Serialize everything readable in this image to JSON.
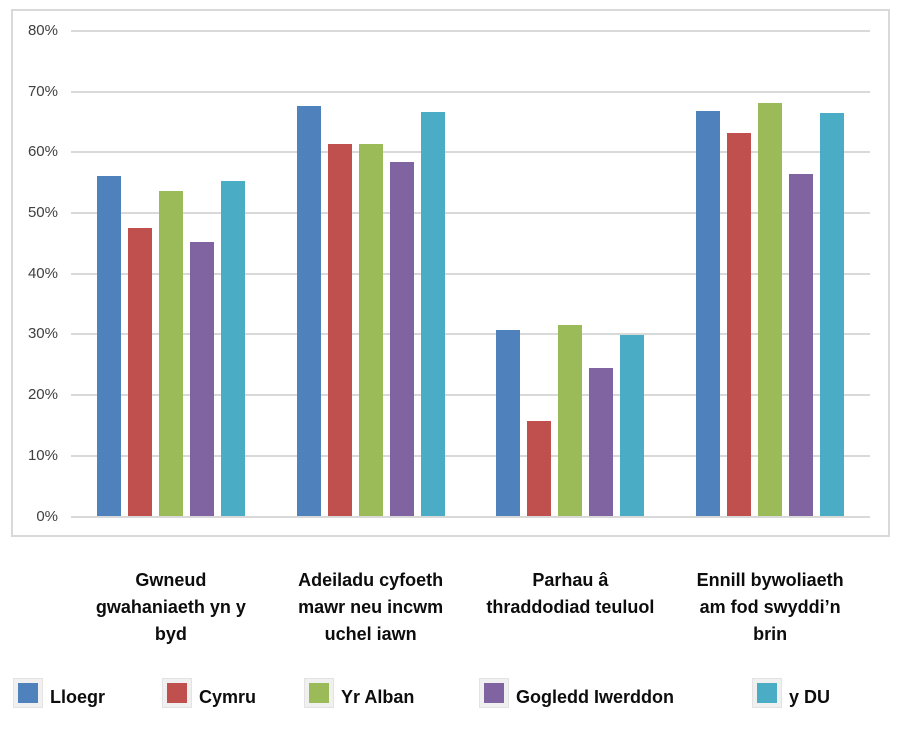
{
  "chart_data": {
    "type": "bar",
    "title": "",
    "xlabel": "",
    "ylabel": "",
    "categories": [
      "Gwneud gwahaniaeth yn y byd",
      "Adeiladu cyfoeth mawr neu incwm uchel iawn",
      "Parhau â thraddodiad teuluol",
      "Ennill bywoliaeth am fod swyddi’n brin"
    ],
    "categories_display": [
      "Gwneud\ngwahaniaeth yn y\nbyd",
      "Adeiladu cyfoeth\nmawr neu incwm\nuchel iawn",
      "Parhau â\nthraddodiad teuluol",
      "Ennill bywoliaeth\nam fod swyddi’n\nbrin"
    ],
    "series": [
      {
        "name": "Lloegr",
        "color": "#4F81BD",
        "values": [
          56.1,
          67.7,
          30.7,
          66.8
        ]
      },
      {
        "name": "Cymru",
        "color": "#C0504D",
        "values": [
          47.6,
          61.3,
          15.7,
          63.2
        ]
      },
      {
        "name": "Yr Alban",
        "color": "#9BBB59",
        "values": [
          53.7,
          61.3,
          31.5,
          68.1
        ]
      },
      {
        "name": "Gogledd Iwerddon",
        "color": "#8064A2",
        "values": [
          45.2,
          58.4,
          24.5,
          56.4
        ]
      },
      {
        "name": "y DU",
        "color": "#4BACC6",
        "values": [
          55.3,
          66.7,
          29.9,
          66.5
        ]
      }
    ],
    "y_axis": {
      "min": 0,
      "max": 80,
      "step": 10,
      "tick_labels": [
        "0%",
        "10%",
        "20%",
        "30%",
        "40%",
        "50%",
        "60%",
        "70%",
        "80%"
      ]
    },
    "grid": "horizontal",
    "legend_position": "bottom",
    "colors": {
      "gridline": "#d9d9d9",
      "plot_border": "#d9d9d9",
      "tick_text": "#404040",
      "label_text": "#0d0d0d"
    }
  }
}
